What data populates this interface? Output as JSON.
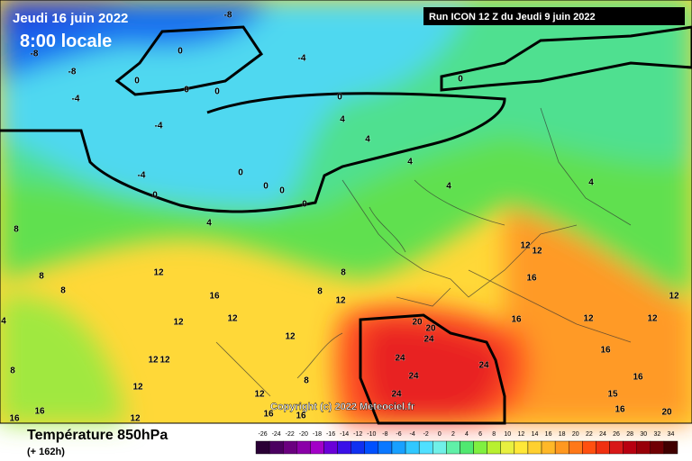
{
  "header": {
    "date": "Jeudi 16 juin 2022",
    "time": "8:00 locale",
    "run": "Run ICON 12 Z du Jeudi 9 juin 2022"
  },
  "footer": {
    "title": "Température 850hPa",
    "subtitle": "(+ 162h)",
    "copyright": "Copyright (c) 2022 Meteociel.fr"
  },
  "legend": {
    "labels": [
      -26,
      -24,
      -22,
      -20,
      -18,
      -16,
      -14,
      -12,
      -10,
      -8,
      -6,
      -4,
      -2,
      0,
      2,
      4,
      6,
      8,
      10,
      12,
      14,
      16,
      18,
      20,
      22,
      24,
      26,
      28,
      30,
      32,
      34
    ],
    "colors": [
      "#2a0035",
      "#4b0060",
      "#6a007f",
      "#8a00a8",
      "#a300c8",
      "#6a00d8",
      "#3a10e8",
      "#1030f0",
      "#0050ff",
      "#0a78ff",
      "#18a0ff",
      "#30c8ff",
      "#50e0ff",
      "#70f0e8",
      "#60f0a8",
      "#50e870",
      "#80f040",
      "#b8f030",
      "#e8f040",
      "#ffe838",
      "#ffd030",
      "#ffb828",
      "#ff9820",
      "#ff7818",
      "#ff5010",
      "#f03010",
      "#d81818",
      "#b80010",
      "#980008",
      "#700004",
      "#400000"
    ]
  },
  "map_labels": [
    "-8",
    "-8",
    "-8",
    "-4",
    "-4",
    "0",
    "0",
    "0",
    "0",
    "0",
    "0",
    "4",
    "4",
    "4",
    "4",
    "4",
    "-4",
    "-4",
    "0",
    "0",
    "0",
    "0",
    "0",
    "4",
    "8",
    "8",
    "8",
    "12",
    "16",
    "8",
    "12",
    "12",
    "12",
    "12",
    "12",
    "12",
    "12",
    "12",
    "12",
    "16",
    "16",
    "16",
    "16",
    "8",
    "20",
    "20",
    "24",
    "24",
    "24",
    "24",
    "24",
    "12",
    "12",
    "16",
    "16",
    "12",
    "12",
    "12",
    "16",
    "16",
    "15",
    "16",
    "20",
    "8",
    "4",
    "8"
  ]
}
